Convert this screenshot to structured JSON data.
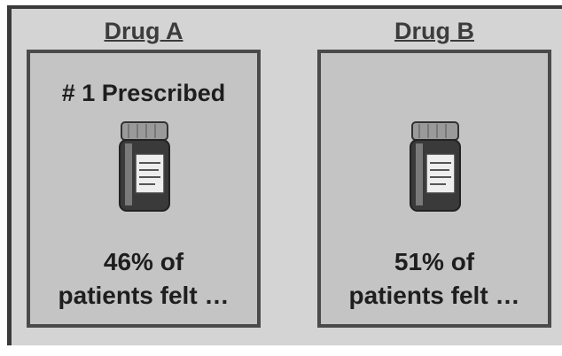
{
  "cards": [
    {
      "label": "Drug A",
      "badge": "# 1 Prescribed",
      "lines": [
        "46% of",
        "patients felt …"
      ]
    },
    {
      "label": "Drug B",
      "lines": [
        "51% of",
        "patients felt …"
      ]
    }
  ]
}
